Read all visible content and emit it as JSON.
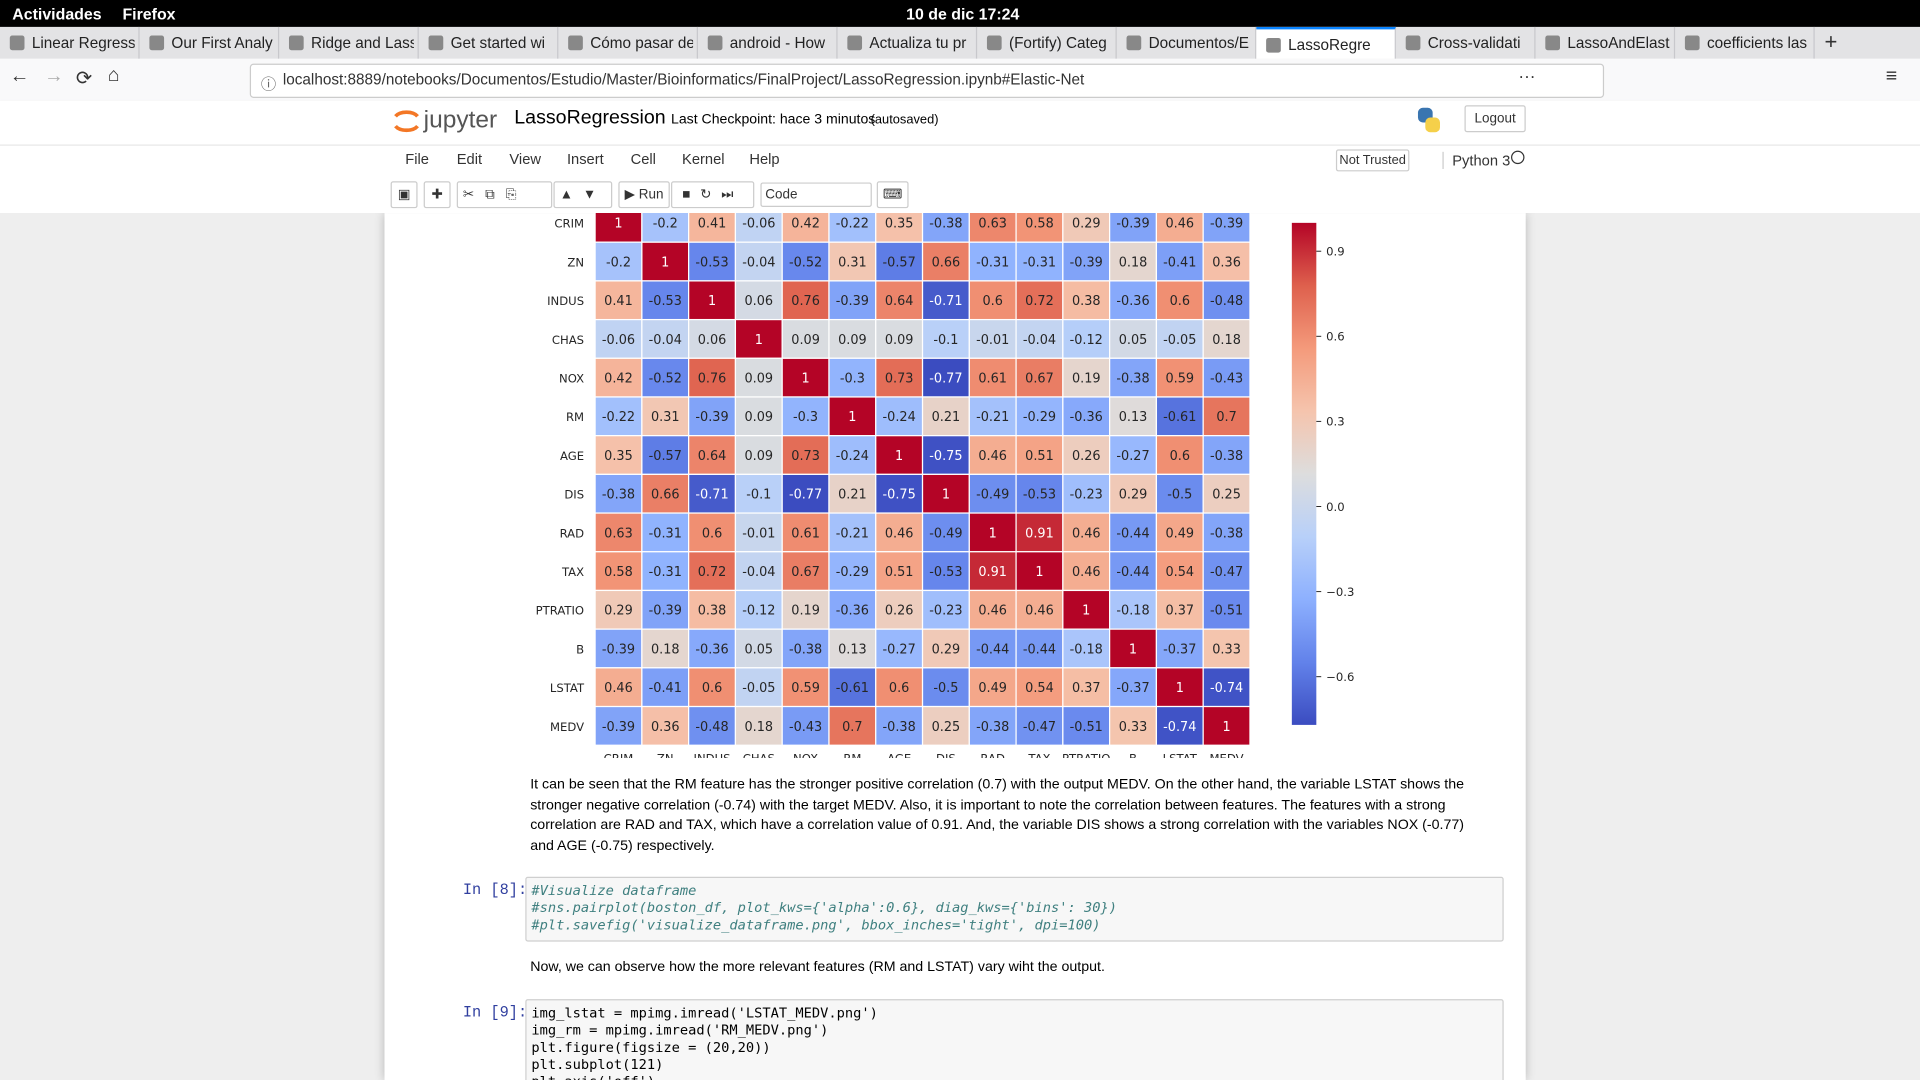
{
  "topbar": {
    "activities": "Actividades",
    "app": "Firefox",
    "clock": "10 de dic  17:24"
  },
  "tabs": [
    "Linear Regress",
    "Our First Analy",
    "Ridge and Lass",
    "Get started wi",
    "Cómo pasar de",
    "android - How",
    "Actualiza tu pr",
    "(Fortify) Categ",
    "Documentos/E",
    "LassoRegre",
    "Cross-validati",
    "LassoAndElast",
    "coefficients las"
  ],
  "url": "localhost:8889/notebooks/Documentos/Estudio/Master/Bioinformatics/FinalProject/LassoRegression.ipynb#Elastic-Net",
  "jupyter": {
    "logo": "jupyter",
    "notebook_name": "LassoRegression",
    "checkpoint": "Last Checkpoint: hace 3 minutos",
    "autosaved": "(autosaved)",
    "logout": "Logout",
    "menu": [
      "File",
      "Edit",
      "View",
      "Insert",
      "Cell",
      "Kernel",
      "Help"
    ],
    "trusted": "Not Trusted",
    "kernel": "Python 3",
    "run": "Run",
    "cell_type": "Code"
  },
  "chart_data": {
    "type": "heatmap",
    "colormap": "coolwarm",
    "categories": [
      "CRIM",
      "ZN",
      "INDUS",
      "CHAS",
      "NOX",
      "RM",
      "AGE",
      "DIS",
      "RAD",
      "TAX",
      "PTRATIO",
      "B",
      "LSTAT",
      "MEDV"
    ],
    "values": [
      [
        1,
        -0.2,
        0.41,
        -0.06,
        0.42,
        -0.22,
        0.35,
        -0.38,
        0.63,
        0.58,
        0.29,
        -0.39,
        0.46,
        -0.39
      ],
      [
        -0.2,
        1,
        -0.53,
        -0.04,
        -0.52,
        0.31,
        -0.57,
        0.66,
        -0.31,
        -0.31,
        -0.39,
        0.18,
        -0.41,
        0.36
      ],
      [
        0.41,
        -0.53,
        1,
        0.06,
        0.76,
        -0.39,
        0.64,
        -0.71,
        0.6,
        0.72,
        0.38,
        -0.36,
        0.6,
        -0.48
      ],
      [
        -0.06,
        -0.04,
        0.06,
        1,
        0.09,
        0.09,
        0.09,
        -0.1,
        -0.01,
        -0.04,
        -0.12,
        0.05,
        -0.05,
        0.18
      ],
      [
        0.42,
        -0.52,
        0.76,
        0.09,
        1,
        -0.3,
        0.73,
        -0.77,
        0.61,
        0.67,
        0.19,
        -0.38,
        0.59,
        -0.43
      ],
      [
        -0.22,
        0.31,
        -0.39,
        0.09,
        -0.3,
        1,
        -0.24,
        0.21,
        -0.21,
        -0.29,
        -0.36,
        0.13,
        -0.61,
        0.7
      ],
      [
        0.35,
        -0.57,
        0.64,
        0.09,
        0.73,
        -0.24,
        1,
        -0.75,
        0.46,
        0.51,
        0.26,
        -0.27,
        0.6,
        -0.38
      ],
      [
        -0.38,
        0.66,
        -0.71,
        -0.1,
        -0.77,
        0.21,
        -0.75,
        1,
        -0.49,
        -0.53,
        -0.23,
        0.29,
        -0.5,
        0.25
      ],
      [
        0.63,
        -0.31,
        0.6,
        -0.01,
        0.61,
        -0.21,
        0.46,
        -0.49,
        1,
        0.91,
        0.46,
        -0.44,
        0.49,
        -0.38
      ],
      [
        0.58,
        -0.31,
        0.72,
        -0.04,
        0.67,
        -0.29,
        0.51,
        -0.53,
        0.91,
        1,
        0.46,
        -0.44,
        0.54,
        -0.47
      ],
      [
        0.29,
        -0.39,
        0.38,
        -0.12,
        0.19,
        -0.36,
        0.26,
        -0.23,
        0.46,
        0.46,
        1,
        -0.18,
        0.37,
        -0.51
      ],
      [
        -0.39,
        0.18,
        -0.36,
        0.05,
        -0.38,
        0.13,
        -0.27,
        0.29,
        -0.44,
        -0.44,
        -0.18,
        1,
        -0.37,
        0.33
      ],
      [
        0.46,
        -0.41,
        0.6,
        -0.05,
        0.59,
        -0.61,
        0.6,
        -0.5,
        0.49,
        0.54,
        0.37,
        -0.37,
        1,
        -0.74
      ],
      [
        -0.39,
        0.36,
        -0.48,
        0.18,
        -0.43,
        0.7,
        -0.38,
        0.25,
        -0.38,
        -0.47,
        -0.51,
        0.33,
        -0.74,
        1
      ]
    ],
    "clim": [
      -0.77,
      1
    ],
    "colorbar_ticks": [
      0.9,
      0.6,
      0.3,
      {
        "value": 0,
        "label": "0.0"
      },
      {
        "value": -0.3,
        "label": "−0.3"
      },
      {
        "value": -0.6,
        "label": "−0.6"
      }
    ]
  },
  "cells": [
    {
      "type": "markdown",
      "text": "It can be seen that the RM feature has the stronger positive correlation (0.7) with the output MEDV. On the other hand, the variable LSTAT shows the stronger negative correlation (-0.74) with the target MEDV. Also, it is important to note the correlation between features. The features with a strong correlation are RAD and TAX, which have a correlation value of 0.91. And, the variable DIS shows a strong correlation with the variables NOX (-0.77) and AGE (-0.75) respectively."
    },
    {
      "type": "code",
      "prompt": "In [8]:",
      "lines": [
        "#Visualize dataframe",
        "#sns.pairplot(boston_df, plot_kws={'alpha':0.6}, diag_kws={'bins': 30})",
        "#plt.savefig('visualize_dataframe.png', bbox_inches='tight', dpi=100)"
      ]
    },
    {
      "type": "markdown",
      "text": "Now, we can observe how the more relevant features (RM and LSTAT) vary wiht the output."
    },
    {
      "type": "code",
      "prompt": "In [9]:",
      "lines": [
        "img_lstat = mpimg.imread('LSTAT_MEDV.png')",
        "img_rm = mpimg.imread('RM_MEDV.png')",
        "plt.figure(figsize = (20,20))",
        "plt.subplot(121)",
        "plt.axis('off')"
      ]
    }
  ]
}
